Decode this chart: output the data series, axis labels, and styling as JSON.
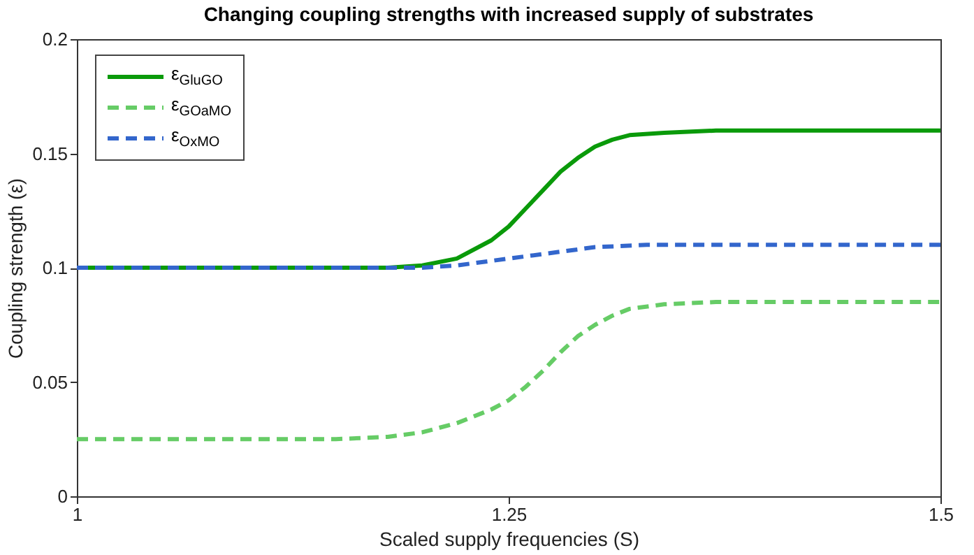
{
  "chart_data": {
    "type": "line",
    "title": "Changing coupling strengths with increased supply of substrates",
    "xlabel": "Scaled supply frequencies (S)",
    "ylabel": "Coupling strength (ε)",
    "xlim": [
      1,
      1.5
    ],
    "xticks": [
      1,
      1.25,
      1.5
    ],
    "ylim": [
      0,
      0.2
    ],
    "yticks": [
      0,
      0.05,
      0.1,
      0.15,
      0.2
    ],
    "grid": false,
    "legend": "top left",
    "marker": "none",
    "series": [
      {
        "name": "ε$_{GluGO}$",
        "color": "#0a9a0a",
        "line_style": "solid",
        "x": [
          1,
          1.15,
          1.18,
          1.2,
          1.22,
          1.24,
          1.25,
          1.26,
          1.27,
          1.28,
          1.29,
          1.3,
          1.31,
          1.32,
          1.34,
          1.37,
          1.5
        ],
        "values": [
          0.1,
          0.1,
          0.1,
          0.101,
          0.104,
          0.112,
          0.118,
          0.126,
          0.134,
          0.142,
          0.148,
          0.153,
          0.156,
          0.158,
          0.159,
          0.16,
          0.16
        ]
      },
      {
        "name": "ε$_{GOaMO}$",
        "color": "#66cc66",
        "line_style": "dashed",
        "x": [
          1,
          1.15,
          1.18,
          1.2,
          1.22,
          1.24,
          1.25,
          1.26,
          1.27,
          1.28,
          1.29,
          1.3,
          1.31,
          1.32,
          1.34,
          1.37,
          1.5
        ],
        "values": [
          0.025,
          0.025,
          0.026,
          0.028,
          0.032,
          0.038,
          0.042,
          0.048,
          0.055,
          0.063,
          0.07,
          0.075,
          0.079,
          0.082,
          0.084,
          0.085,
          0.085
        ]
      },
      {
        "name": "ε$_{OxMO}$",
        "color": "#3366cc",
        "line_style": "dashed",
        "x": [
          1,
          1.18,
          1.2,
          1.22,
          1.24,
          1.26,
          1.28,
          1.3,
          1.33,
          1.5
        ],
        "values": [
          0.1,
          0.1,
          0.1,
          0.101,
          0.103,
          0.105,
          0.107,
          0.109,
          0.11,
          0.11
        ]
      }
    ]
  }
}
